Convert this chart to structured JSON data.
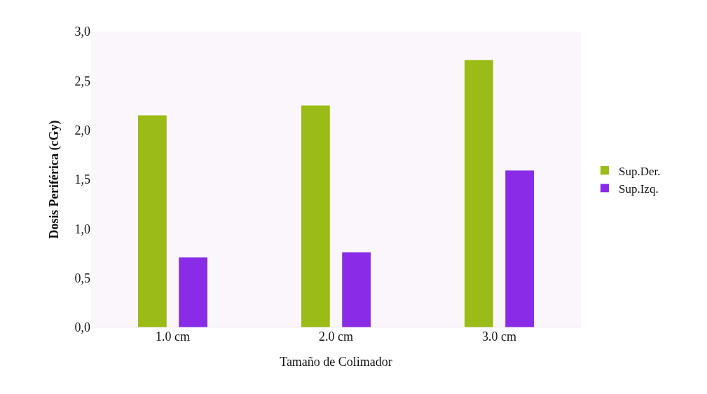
{
  "chart_data": {
    "type": "bar",
    "xlabel": "Tamaño de Colimador",
    "ylabel": "Dosis Periférica (cGy)",
    "categories": [
      "1.0 cm",
      "2.0 cm",
      "3.0 cm"
    ],
    "series": [
      {
        "name": "Sup.Der.",
        "color": "#9bbb16",
        "values": [
          2.15,
          2.25,
          2.71
        ]
      },
      {
        "name": "Sup.Izq.",
        "color": "#8a2be8",
        "values": [
          0.71,
          0.76,
          1.59
        ]
      }
    ],
    "ylim": [
      0,
      3
    ],
    "yticks": [
      {
        "value": 0,
        "label": "0,0"
      },
      {
        "value": 0.5,
        "label": "0,5"
      },
      {
        "value": 1,
        "label": "1,0"
      },
      {
        "value": 1.5,
        "label": "1,5"
      },
      {
        "value": 2,
        "label": "2,0"
      },
      {
        "value": 2.5,
        "label": "2,5"
      },
      {
        "value": 3,
        "label": "3,0"
      }
    ],
    "grid": false,
    "legend": "right"
  }
}
